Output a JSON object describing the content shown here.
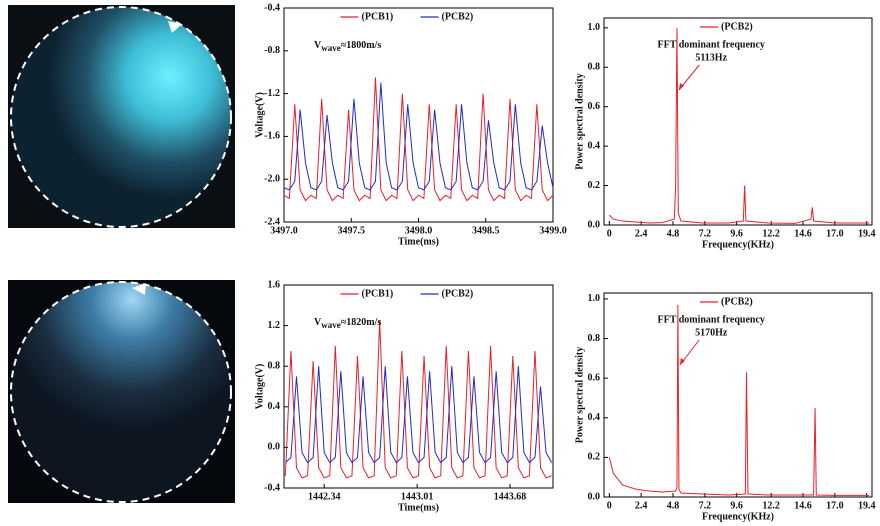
{
  "chart_data": [
    {
      "type": "line",
      "xlabel": "Time(ms)",
      "ylabel": "Voltage(V)",
      "annotation": {
        "text": "V",
        "subscript": "wave",
        "rest": "≈1800m/s"
      },
      "x": [
        3497,
        3497.04,
        3497.08,
        3497.12,
        3497.16,
        3497.2,
        3497.24,
        3497.28,
        3497.32,
        3497.36,
        3497.4,
        3497.44,
        3497.48,
        3497.52,
        3497.56,
        3497.6,
        3497.64,
        3497.68,
        3497.72,
        3497.76,
        3497.8,
        3497.84,
        3497.88,
        3497.92,
        3497.96,
        3498,
        3498.04,
        3498.08,
        3498.12,
        3498.16,
        3498.2,
        3498.24,
        3498.28,
        3498.32,
        3498.36,
        3498.4,
        3498.44,
        3498.48,
        3498.52,
        3498.56,
        3498.6,
        3498.64,
        3498.68,
        3498.72,
        3498.76,
        3498.8,
        3498.84,
        3498.88,
        3498.92,
        3498.96,
        3499
      ],
      "series": [
        {
          "name": "(PCB1)",
          "color": "#e8202a",
          "values": [
            -2.15,
            -2.18,
            -1.3,
            -2.1,
            -2.2,
            -2.15,
            -2.18,
            -1.25,
            -2.1,
            -2.2,
            -2.15,
            -2.18,
            -1.35,
            -2.1,
            -2.2,
            -2.15,
            -2.18,
            -1.05,
            -2.1,
            -2.2,
            -2.15,
            -2.18,
            -1.2,
            -2.1,
            -2.2,
            -2.15,
            -2.18,
            -1.3,
            -2.1,
            -2.2,
            -2.15,
            -2.18,
            -1.3,
            -2.1,
            -2.2,
            -2.15,
            -2.18,
            -1.2,
            -2.1,
            -2.2,
            -2.15,
            -2.18,
            -1.25,
            -2.1,
            -2.2,
            -2.15,
            -2.18,
            -1.3,
            -2.1,
            -2.2,
            -2.15
          ]
        },
        {
          "name": "(PCB2)",
          "color": "#1f2bd6",
          "values": [
            -2.08,
            -2.1,
            -2.02,
            -1.35,
            -1.85,
            -2.08,
            -2.1,
            -2.02,
            -1.4,
            -1.85,
            -2.08,
            -2.1,
            -2.02,
            -1.25,
            -1.85,
            -2.08,
            -2.1,
            -2.02,
            -1.1,
            -1.85,
            -2.08,
            -2.1,
            -2.02,
            -1.3,
            -1.85,
            -2.08,
            -2.1,
            -2.02,
            -1.35,
            -1.85,
            -2.08,
            -2.1,
            -2.02,
            -1.3,
            -1.85,
            -2.08,
            -2.1,
            -2.02,
            -1.45,
            -1.85,
            -2.08,
            -2.1,
            -2.02,
            -1.3,
            -1.85,
            -2.08,
            -2.1,
            -2.02,
            -1.5,
            -1.85,
            -2.08
          ]
        }
      ],
      "xlim": [
        3497,
        3499
      ],
      "ylim": [
        -2.4,
        -0.4
      ],
      "xticks": [
        {
          "value": 3497,
          "label": "3497.0"
        },
        3497.5,
        {
          "value": 3498,
          "label": "3498.0"
        },
        3498.5,
        {
          "value": 3499,
          "label": "3499.0"
        }
      ],
      "yticks": [
        -2.4,
        {
          "value": -2,
          "label": "-2.0"
        },
        -1.6,
        -1.2,
        -0.8,
        -0.4
      ]
    },
    {
      "type": "line",
      "xlabel": "Frequency(KHz)",
      "ylabel": "Power spectral density",
      "annotation": [
        "FFT dominant frequency",
        "5113Hz"
      ],
      "x": [
        0,
        0.3,
        1,
        2,
        3,
        4,
        4.9,
        5.0,
        5.1,
        5.2,
        5.4,
        7,
        9,
        10.1,
        10.2,
        10.3,
        12,
        14,
        15.2,
        15.3,
        15.4,
        17,
        19.6
      ],
      "series": [
        {
          "name": "(PCB2)",
          "color": "#e8202a",
          "values": [
            0.05,
            0.03,
            0.02,
            0.015,
            0.01,
            0.012,
            0.03,
            0.2,
            1.0,
            0.06,
            0.02,
            0.01,
            0.01,
            0.02,
            0.2,
            0.02,
            0.01,
            0.008,
            0.03,
            0.09,
            0.02,
            0.01,
            0.01
          ]
        }
      ],
      "xlim": [
        -0.4,
        19.8
      ],
      "ylim": [
        0,
        1.05
      ],
      "xticks": [
        0,
        2.4,
        4.8,
        7.2,
        9.6,
        12.2,
        14.6,
        {
          "value": 17,
          "label": "17.0"
        },
        19.4
      ],
      "yticks": [
        {
          "value": 0,
          "label": "0.0"
        },
        0.2,
        0.4,
        0.6,
        0.8,
        {
          "value": 1,
          "label": "1.0"
        }
      ]
    },
    {
      "type": "line",
      "xlabel": "Time(ms)",
      "ylabel": "Voltage(V)",
      "annotation": {
        "text": "V",
        "subscript": "wave",
        "rest": "≈1820m/s"
      },
      "x": [
        1442.06,
        1442.1,
        1442.14,
        1442.18,
        1442.22,
        1442.26,
        1442.3,
        1442.34,
        1442.38,
        1442.42,
        1442.46,
        1442.5,
        1442.54,
        1442.58,
        1442.62,
        1442.66,
        1442.7,
        1442.74,
        1442.78,
        1442.82,
        1442.86,
        1442.9,
        1442.94,
        1442.98,
        1443.02,
        1443.06,
        1443.1,
        1443.14,
        1443.18,
        1443.22,
        1443.26,
        1443.3,
        1443.34,
        1443.38,
        1443.42,
        1443.46,
        1443.5,
        1443.54,
        1443.58,
        1443.62,
        1443.66,
        1443.7,
        1443.74,
        1443.78,
        1443.82,
        1443.86,
        1443.9,
        1443.94,
        1443.98
      ],
      "series": [
        {
          "name": "(PCB1)",
          "color": "#e8202a",
          "values": [
            -0.28,
            0.95,
            -0.2,
            -0.3,
            -0.28,
            0.85,
            -0.2,
            -0.3,
            -0.28,
            1.0,
            -0.2,
            -0.3,
            -0.28,
            0.9,
            -0.2,
            -0.3,
            -0.28,
            1.25,
            -0.2,
            -0.3,
            -0.28,
            0.95,
            -0.2,
            -0.3,
            -0.28,
            0.9,
            -0.2,
            -0.3,
            -0.28,
            1.0,
            -0.2,
            -0.3,
            -0.28,
            0.95,
            -0.2,
            -0.3,
            -0.28,
            1.0,
            -0.2,
            -0.3,
            -0.28,
            0.9,
            -0.2,
            -0.3,
            -0.28,
            0.95,
            -0.2,
            -0.3,
            -0.28
          ]
        },
        {
          "name": "(PCB2)",
          "color": "#1f2bd6",
          "values": [
            -0.15,
            -0.1,
            0.7,
            -0.05,
            -0.15,
            -0.1,
            0.8,
            -0.05,
            -0.15,
            -0.1,
            0.75,
            -0.05,
            -0.15,
            -0.1,
            0.7,
            -0.05,
            -0.15,
            -0.1,
            0.8,
            -0.05,
            -0.15,
            -0.1,
            0.7,
            -0.05,
            -0.15,
            -0.1,
            0.75,
            -0.05,
            -0.15,
            -0.1,
            0.8,
            -0.05,
            -0.15,
            -0.1,
            0.7,
            -0.05,
            -0.15,
            -0.1,
            0.75,
            -0.05,
            -0.15,
            -0.1,
            0.8,
            -0.05,
            -0.15,
            -0.1,
            0.6,
            -0.05,
            -0.15
          ]
        }
      ],
      "xlim": [
        1442.05,
        1443.99
      ],
      "ylim": [
        -0.4,
        1.6
      ],
      "xticks": [
        1442.34,
        1443.01,
        1443.68
      ],
      "yticks": [
        -0.4,
        {
          "value": 0,
          "label": "0.0"
        },
        0.4,
        0.8,
        1.2,
        1.6
      ]
    },
    {
      "type": "line",
      "xlabel": "Frequency(KHz)",
      "ylabel": "Power spectral density",
      "annotation": [
        "FFT dominant frequency",
        "5170Hz"
      ],
      "x": [
        0,
        0.3,
        1,
        2,
        3,
        4,
        5.0,
        5.1,
        5.17,
        5.25,
        5.4,
        7,
        9,
        10.25,
        10.34,
        10.45,
        12,
        14,
        15.4,
        15.51,
        15.6,
        17,
        19.6
      ],
      "series": [
        {
          "name": "(PCB2)",
          "color": "#e8202a",
          "values": [
            0.2,
            0.12,
            0.06,
            0.04,
            0.03,
            0.025,
            0.03,
            0.05,
            0.97,
            0.04,
            0.02,
            0.015,
            0.01,
            0.015,
            0.63,
            0.015,
            0.01,
            0.01,
            0.01,
            0.45,
            0.01,
            0.008,
            0.008
          ]
        }
      ],
      "xlim": [
        -0.4,
        19.8
      ],
      "ylim": [
        0,
        1.03
      ],
      "xticks": [
        0,
        2.4,
        4.8,
        7.2,
        9.6,
        12.2,
        14.6,
        {
          "value": 17,
          "label": "17.0"
        },
        19.4
      ],
      "yticks": [
        {
          "value": 0,
          "label": "0.0"
        },
        0.2,
        0.4,
        0.6,
        0.8,
        {
          "value": 1,
          "label": "1.0"
        }
      ]
    }
  ]
}
